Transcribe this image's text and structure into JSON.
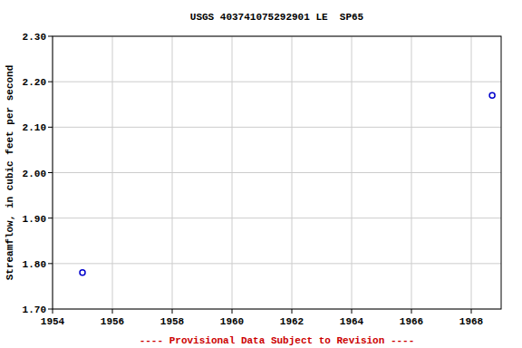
{
  "chart_data": {
    "type": "scatter",
    "title": "USGS 403741075292901 LE  SP65",
    "y_label": "Streamflow, in cubic feet per second",
    "annotations": [
      "---- Provisional Data Subject to Revision ----"
    ],
    "x": [
      1955.0,
      1968.7
    ],
    "values": [
      1.78,
      2.17
    ],
    "color": "#0000cc",
    "marker": "open-circle",
    "xlim": [
      1954,
      1969
    ],
    "xticks": [
      1954,
      1956,
      1958,
      1960,
      1962,
      1964,
      1966,
      1968
    ],
    "ylim": [
      1.7,
      2.3
    ],
    "yticks": [
      {
        "value": 1.7,
        "label": "1.70"
      },
      {
        "value": 1.8,
        "label": "1.80"
      },
      {
        "value": 1.9,
        "label": "1.90"
      },
      {
        "value": 2.0,
        "label": "2.00"
      },
      {
        "value": 2.1,
        "label": "2.10"
      },
      {
        "value": 2.2,
        "label": "2.20"
      },
      {
        "value": 2.3,
        "label": "2.30"
      }
    ],
    "grid": true
  }
}
